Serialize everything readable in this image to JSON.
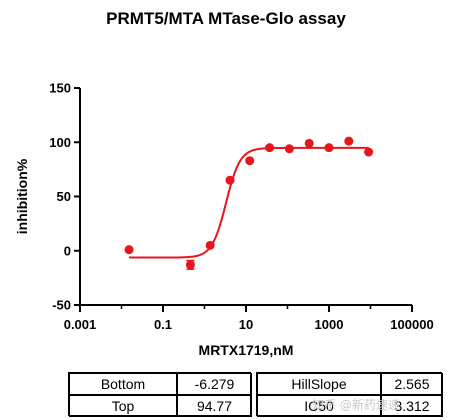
{
  "chart_data": {
    "type": "scatter",
    "title": "PRMT5/MTA MTase-Glo assay",
    "xlabel": "MRTX1719,nM",
    "ylabel": "inhibition%",
    "xscale": "log",
    "xlim": [
      0.001,
      100000
    ],
    "ylim": [
      -50,
      150
    ],
    "x_ticks": [
      0.001,
      0.1,
      10,
      1000,
      100000
    ],
    "x_tick_labels": [
      "0.001",
      "0.1",
      "10",
      "1000",
      "100000"
    ],
    "y_ticks": [
      -50,
      0,
      50,
      100,
      150
    ],
    "y_tick_labels": [
      "-50",
      "0",
      "50",
      "100",
      "150"
    ],
    "grid": false,
    "series": [
      {
        "points": [
          {
            "x": 0.0152,
            "y": 1
          },
          {
            "x": 0.457,
            "y": -13,
            "err": 4
          },
          {
            "x": 1.37,
            "y": 5
          },
          {
            "x": 4.12,
            "y": 65
          },
          {
            "x": 12.3,
            "y": 83
          },
          {
            "x": 37.0,
            "y": 95
          },
          {
            "x": 111,
            "y": 94
          },
          {
            "x": 333,
            "y": 99
          },
          {
            "x": 1000,
            "y": 95
          },
          {
            "x": 3000,
            "y": 101
          },
          {
            "x": 9000,
            "y": 91
          }
        ],
        "fit": {
          "model": "4PL",
          "bottom": -6.279,
          "top": 94.77,
          "hillslope": 2.565,
          "ic50": 3.312
        },
        "color": "#e8151b"
      }
    ]
  },
  "params": [
    {
      "name": "Bottom",
      "value": "-6.279"
    },
    {
      "name": "Top",
      "value": "94.77"
    },
    {
      "name": "HillSlope",
      "value": "2.565"
    },
    {
      "name": "IC50",
      "value": "3.312"
    }
  ],
  "watermark": "知乎 @新药速递"
}
